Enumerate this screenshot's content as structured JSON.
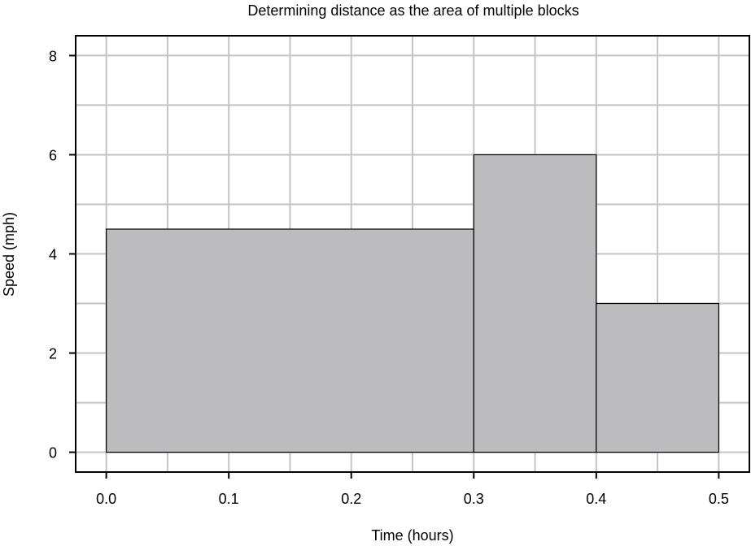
{
  "chart_data": {
    "type": "bar",
    "title": "Determining distance as the area of multiple blocks",
    "xlabel": "Time (hours)",
    "ylabel": "Speed (mph)",
    "xlim": [
      -0.025,
      0.525
    ],
    "ylim": [
      -0.4,
      8.4
    ],
    "x_ticks": [
      "0.0",
      "0.1",
      "0.2",
      "0.3",
      "0.4",
      "0.5"
    ],
    "x_tick_values": [
      0.0,
      0.1,
      0.2,
      0.3,
      0.4,
      0.5
    ],
    "y_ticks": [
      "0",
      "2",
      "4",
      "6",
      "8"
    ],
    "y_tick_values": [
      0,
      2,
      4,
      6,
      8
    ],
    "x_grid_values": [
      0.0,
      0.05,
      0.1,
      0.15,
      0.2,
      0.25,
      0.3,
      0.35,
      0.4,
      0.45,
      0.5
    ],
    "y_grid_values": [
      0,
      1,
      2,
      3,
      4,
      5,
      6,
      7,
      8
    ],
    "grid": true,
    "blocks": [
      {
        "x_start": 0.0,
        "x_end": 0.3,
        "value": 4.5
      },
      {
        "x_start": 0.3,
        "x_end": 0.4,
        "value": 6.0
      },
      {
        "x_start": 0.4,
        "x_end": 0.5,
        "value": 3.0
      }
    ],
    "colors": {
      "block_fill": "#bcbcbf",
      "grid": "#c4c4c4"
    }
  }
}
